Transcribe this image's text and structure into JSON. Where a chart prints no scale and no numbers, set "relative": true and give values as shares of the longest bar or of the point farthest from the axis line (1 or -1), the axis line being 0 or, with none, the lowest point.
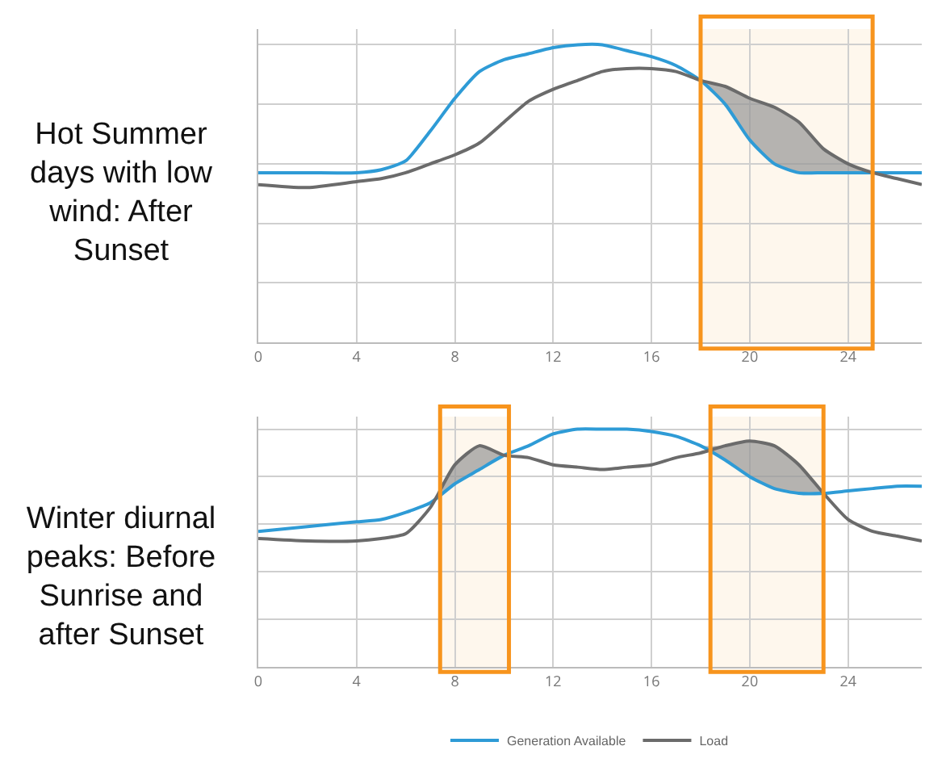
{
  "chart_data": [
    {
      "type": "line",
      "title": "Hot Summer days with low wind: After Sunset",
      "relative": true,
      "grid": true,
      "x": [
        0,
        2,
        4,
        5,
        6,
        7,
        8,
        9,
        10,
        11,
        12,
        13,
        14,
        15,
        16,
        17,
        18,
        19,
        20,
        21,
        22,
        23,
        24,
        25,
        26,
        27
      ],
      "xlim": [
        0,
        27
      ],
      "xticks": [
        0,
        4,
        8,
        12,
        16,
        20,
        24
      ],
      "series": [
        {
          "color": "#2e9bd6",
          "values": [
            0.57,
            0.57,
            0.57,
            0.58,
            0.61,
            0.71,
            0.82,
            0.91,
            0.95,
            0.97,
            0.99,
            1.0,
            1.0,
            0.98,
            0.96,
            0.93,
            0.88,
            0.8,
            0.68,
            0.6,
            0.57,
            0.57,
            0.57,
            0.57,
            0.57,
            0.57
          ]
        },
        {
          "color": "#6b6b6b",
          "values": [
            0.53,
            0.52,
            0.54,
            0.55,
            0.57,
            0.6,
            0.63,
            0.67,
            0.74,
            0.81,
            0.85,
            0.88,
            0.91,
            0.92,
            0.92,
            0.91,
            0.88,
            0.86,
            0.82,
            0.79,
            0.74,
            0.65,
            0.6,
            0.57,
            0.55,
            0.53
          ]
        }
      ],
      "bands": [
        {
          "axis": "x",
          "from": 18,
          "to": 25,
          "color": "#f7941d"
        }
      ]
    },
    {
      "type": "line",
      "title": "Winter diurnal peaks: Before Sunrise and after Sunset",
      "relative": true,
      "grid": true,
      "legend": "bottom",
      "x": [
        0,
        2,
        4,
        5,
        6,
        7,
        8,
        9,
        10,
        11,
        12,
        13,
        14,
        15,
        16,
        17,
        18,
        19,
        20,
        21,
        22,
        23,
        24,
        25,
        26,
        27
      ],
      "xlim": [
        0,
        27
      ],
      "xticks": [
        0,
        4,
        8,
        12,
        16,
        20,
        24
      ],
      "series": [
        {
          "name": "Generation Available",
          "color": "#2e9bd6",
          "values": [
            0.57,
            0.59,
            0.61,
            0.62,
            0.65,
            0.69,
            0.77,
            0.83,
            0.89,
            0.93,
            0.98,
            1.0,
            1.0,
            1.0,
            0.99,
            0.97,
            0.93,
            0.87,
            0.8,
            0.75,
            0.73,
            0.73,
            0.74,
            0.75,
            0.76,
            0.76
          ]
        },
        {
          "name": "Load",
          "color": "#6b6b6b",
          "values": [
            0.54,
            0.53,
            0.53,
            0.54,
            0.56,
            0.67,
            0.85,
            0.93,
            0.89,
            0.88,
            0.85,
            0.84,
            0.83,
            0.84,
            0.85,
            0.88,
            0.9,
            0.93,
            0.95,
            0.93,
            0.85,
            0.73,
            0.62,
            0.57,
            0.55,
            0.53
          ]
        }
      ],
      "bands": [
        {
          "axis": "x",
          "from": 7.4,
          "to": 10.2,
          "color": "#f7941d"
        },
        {
          "axis": "x",
          "from": 18.4,
          "to": 23,
          "color": "#f7941d"
        }
      ]
    }
  ]
}
